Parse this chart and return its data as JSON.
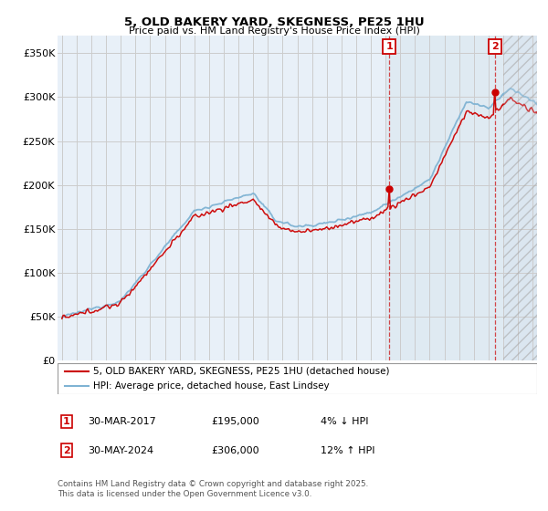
{
  "title": "5, OLD BAKERY YARD, SKEGNESS, PE25 1HU",
  "subtitle": "Price paid vs. HM Land Registry's House Price Index (HPI)",
  "ylabel_ticks": [
    "£0",
    "£50K",
    "£100K",
    "£150K",
    "£200K",
    "£250K",
    "£300K",
    "£350K"
  ],
  "ytick_vals": [
    0,
    50000,
    100000,
    150000,
    200000,
    250000,
    300000,
    350000
  ],
  "ylim": [
    0,
    370000
  ],
  "xlim_start": 1994.7,
  "xlim_end": 2027.3,
  "marker1_x": 2017.25,
  "marker1_y": 195000,
  "marker2_x": 2024.42,
  "marker2_y": 306000,
  "hatch_start": 2025.0,
  "highlight_start": 2017.0,
  "line_red_color": "#cc0000",
  "line_blue_color": "#7fb3d3",
  "hatch_color": "#c8d8e8",
  "highlight_color": "#dce8f0",
  "grid_color": "#cccccc",
  "bg_color": "#ffffff",
  "plot_bg_color": "#e8f0f8",
  "legend_label_red": "5, OLD BAKERY YARD, SKEGNESS, PE25 1HU (detached house)",
  "legend_label_blue": "HPI: Average price, detached house, East Lindsey",
  "marker1_date": "30-MAR-2017",
  "marker1_price": "£195,000",
  "marker1_hpi": "4% ↓ HPI",
  "marker2_date": "30-MAY-2024",
  "marker2_price": "£306,000",
  "marker2_hpi": "12% ↑ HPI",
  "footer": "Contains HM Land Registry data © Crown copyright and database right 2025.\nThis data is licensed under the Open Government Licence v3.0.",
  "marker_box_color": "#cc0000"
}
